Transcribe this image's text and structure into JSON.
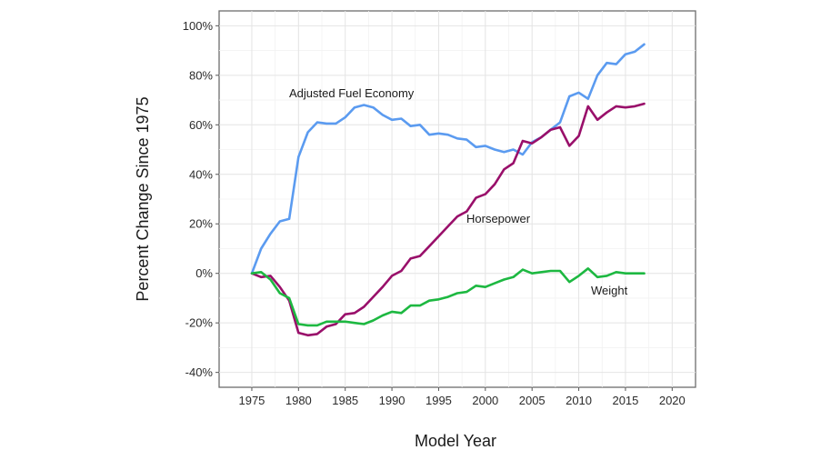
{
  "chart_data": {
    "type": "line",
    "xlabel": "Model Year",
    "ylabel": "Percent Change Since 1975",
    "xlim": [
      1971.5,
      2022.5
    ],
    "ylim": [
      -46,
      106
    ],
    "x_ticks": [
      1975,
      1980,
      1985,
      1990,
      1995,
      2000,
      2005,
      2010,
      2015,
      2020
    ],
    "y_ticks": [
      -40,
      -20,
      0,
      20,
      40,
      60,
      80,
      100
    ],
    "y_tick_labels": [
      "-40%",
      "-20%",
      "0%",
      "20%",
      "40%",
      "60%",
      "80%",
      "100%"
    ],
    "grid": true,
    "legend": "none",
    "x": [
      1975,
      1976,
      1977,
      1978,
      1979,
      1980,
      1981,
      1982,
      1983,
      1984,
      1985,
      1986,
      1987,
      1988,
      1989,
      1990,
      1991,
      1992,
      1993,
      1994,
      1995,
      1996,
      1997,
      1998,
      1999,
      2000,
      2001,
      2002,
      2003,
      2004,
      2005,
      2006,
      2007,
      2008,
      2009,
      2010,
      2011,
      2012,
      2013,
      2014,
      2015,
      2016,
      2017
    ],
    "series": [
      {
        "name": "Adjusted Fuel Economy",
        "color": "#5b9bf0",
        "values": [
          0,
          10,
          16,
          21,
          22,
          47,
          57,
          61,
          60.5,
          60.5,
          63,
          67,
          68,
          67,
          64,
          62,
          62.5,
          59.5,
          60,
          56,
          56.5,
          56,
          54.5,
          54,
          51,
          51.5,
          50,
          49,
          50,
          48,
          53,
          55,
          58,
          61,
          71.5,
          73,
          70.5,
          80,
          85,
          84.5,
          88.5,
          89.5,
          92.5
        ]
      },
      {
        "name": "Horsepower",
        "color": "#990f6a",
        "values": [
          0,
          -1.5,
          -1,
          -5.5,
          -11,
          -24,
          -25,
          -24.5,
          -21.5,
          -20.5,
          -16.5,
          -16,
          -13.5,
          -9.5,
          -5.5,
          -1,
          1,
          6,
          7,
          11,
          15,
          19,
          23,
          25,
          30.5,
          32,
          36,
          42,
          44.5,
          53.5,
          52.5,
          55,
          58,
          59,
          51.5,
          55.5,
          67.5,
          62,
          65,
          67.5,
          67,
          67.5,
          68.5
        ]
      },
      {
        "name": "Weight",
        "color": "#1db841",
        "values": [
          0,
          0.5,
          -2.5,
          -8,
          -10,
          -20.5,
          -21,
          -21,
          -19.5,
          -19.5,
          -19.5,
          -20,
          -20.5,
          -19,
          -17,
          -15.5,
          -16,
          -13,
          -13,
          -11,
          -10.5,
          -9.5,
          -8,
          -7.5,
          -5,
          -5.5,
          -4,
          -2.5,
          -1.5,
          1.5,
          0,
          0.5,
          1,
          1,
          -3.5,
          -1,
          2,
          -1.5,
          -1,
          0.5,
          0,
          0,
          0
        ]
      }
    ]
  }
}
